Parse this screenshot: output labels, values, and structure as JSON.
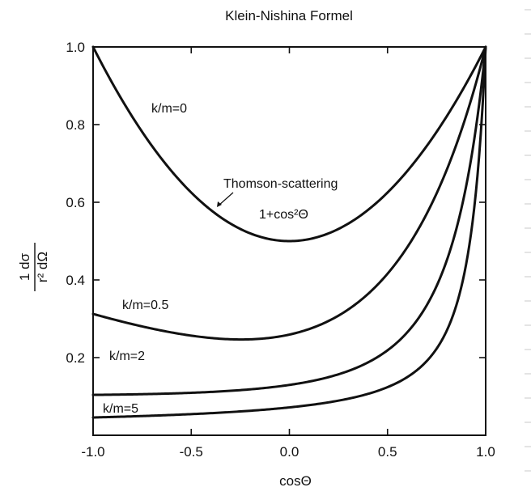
{
  "chart_data": {
    "type": "line",
    "title": "Klein-Nishina Formel",
    "xlabel": "cosΘ",
    "ylabel": {
      "numerator": "1 dσ",
      "denominator": "r² dΩ"
    },
    "xlim": [
      -1.0,
      1.0
    ],
    "ylim": [
      0.0,
      1.0
    ],
    "x_ticks": [
      "-1.0",
      "-0.5",
      "0.0",
      "0.5",
      "1.0"
    ],
    "x_tick_values": [
      -1.0,
      -0.5,
      0.0,
      0.5,
      1.0
    ],
    "y_ticks": [
      "0.2",
      "0.4",
      "0.6",
      "0.8",
      "1.0"
    ],
    "y_tick_values": [
      0.2,
      0.4,
      0.6,
      0.8,
      1.0
    ],
    "grid": false,
    "series": [
      {
        "name": "k/m=0",
        "k": 0
      },
      {
        "name": "k/m=0.5",
        "k": 0.5
      },
      {
        "name": "k/m=2",
        "k": 2
      },
      {
        "name": "k/m=5",
        "k": 5
      }
    ],
    "annotations": {
      "thomson": "Thomson-scattering",
      "formula": "1+cos²Θ"
    }
  }
}
